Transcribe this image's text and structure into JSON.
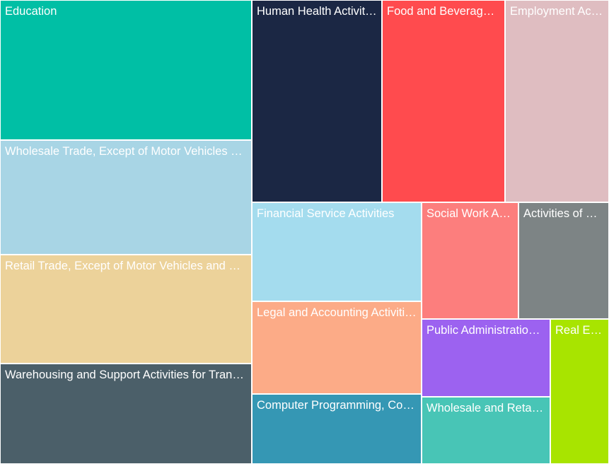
{
  "chart_data": {
    "type": "treemap",
    "items": [
      {
        "label": "Education",
        "color": "#00bfa5",
        "text_color": "#ffffff"
      },
      {
        "label": "Wholesale Trade, Except of Motor Vehicles and Motorcycles",
        "color": "#a8d5e5",
        "text_color": "#ffffff"
      },
      {
        "label": "Retail Trade, Except of Motor Vehicles and Motorcycles",
        "color": "#ecd29a",
        "text_color": "#ffffff"
      },
      {
        "label": "Warehousing and Support Activities for Transportation",
        "color": "#4b5f69",
        "text_color": "#ffffff"
      },
      {
        "label": "Human Health Activities",
        "color": "#1b2744",
        "text_color": "#ffffff"
      },
      {
        "label": "Food and Beverage Service Activities",
        "color": "#ff4b4e",
        "text_color": "#ffffff"
      },
      {
        "label": "Employment Activities",
        "color": "#dfbdc1",
        "text_color": "#ffffff"
      },
      {
        "label": "Financial Service Activities",
        "color": "#a4dcee",
        "text_color": "#ffffff"
      },
      {
        "label": "Legal and Accounting Activities",
        "color": "#fcab87",
        "text_color": "#ffffff"
      },
      {
        "label": "Computer Programming, Consultancy and Related Activities",
        "color": "#3597b4",
        "text_color": "#ffffff"
      },
      {
        "label": "Social Work Activities",
        "color": "#fc7e7d",
        "text_color": "#ffffff"
      },
      {
        "label": "Activities of Head Offices",
        "color": "#7d8485",
        "text_color": "#ffffff"
      },
      {
        "label": "Public Administration and Defence",
        "color": "#9c62f0",
        "text_color": "#ffffff"
      },
      {
        "label": "Wholesale and Retail Trade and Repair of Motor Vehicles",
        "color": "#48c5b6",
        "text_color": "#ffffff"
      },
      {
        "label": "Real Estate Activities",
        "color": "#a8e400",
        "text_color": "#ffffff"
      }
    ]
  }
}
